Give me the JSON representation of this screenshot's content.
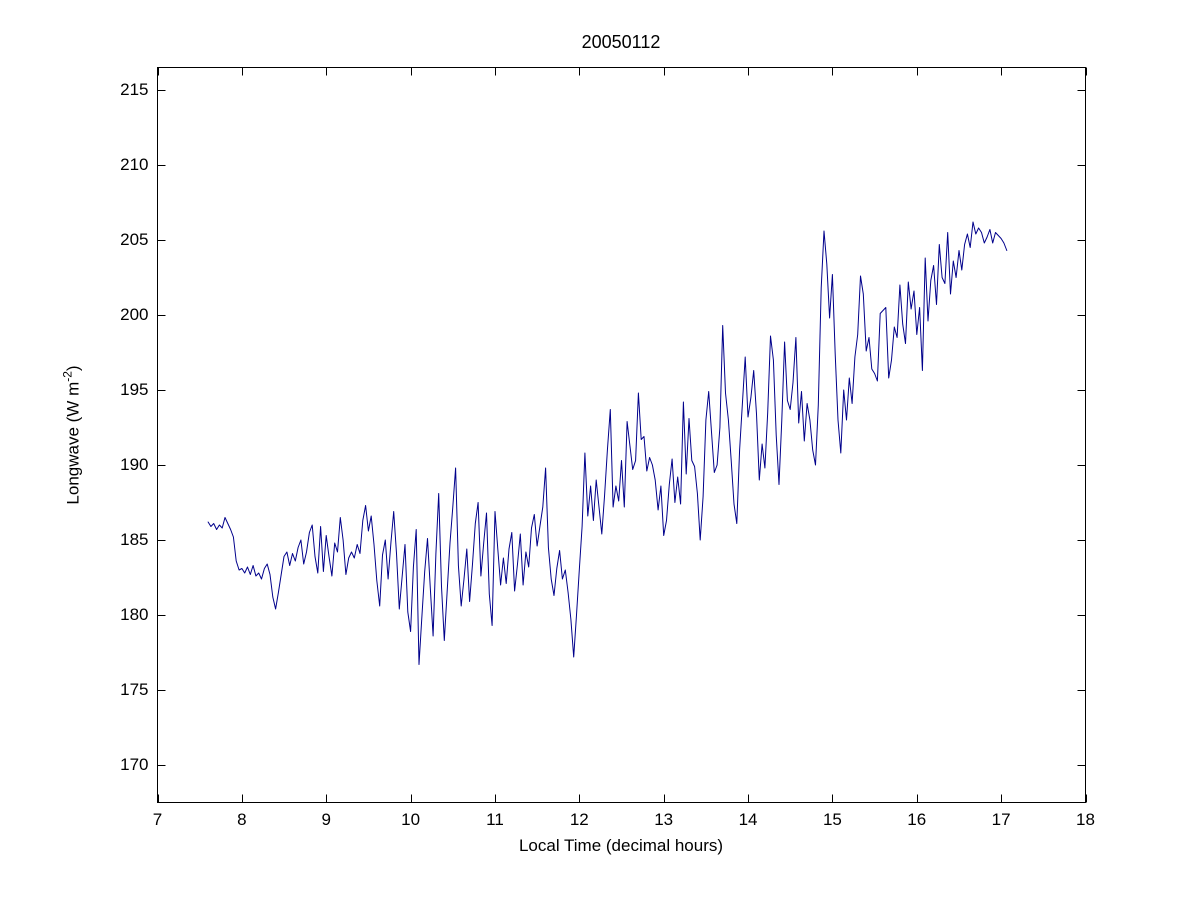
{
  "figure": {
    "title": "20050112",
    "xlabel": "Local Time (decimal hours)",
    "ylabel_main": "Longwave (W m",
    "ylabel_sup": "-2",
    "ylabel_close": ")",
    "line_color": "#00008B",
    "axis_color": "#000000",
    "background": "#FFFFFF"
  },
  "chart_data": {
    "type": "line",
    "title": "20050112",
    "xlabel": "Local Time (decimal hours)",
    "ylabel": "Longwave (W m^-2)",
    "xlim": [
      7,
      18
    ],
    "ylim": [
      167.5,
      216.5
    ],
    "xticks": [
      7,
      8,
      9,
      10,
      11,
      12,
      13,
      14,
      15,
      16,
      17,
      18
    ],
    "yticks": [
      170,
      175,
      180,
      185,
      190,
      195,
      200,
      205,
      210,
      215
    ],
    "grid": false,
    "legend": "none",
    "series_name": "longwave-irradiance",
    "x_start": 7.6,
    "x_step": 0.0333333,
    "y": [
      186.2,
      185.9,
      186.1,
      185.7,
      186.0,
      185.8,
      186.5,
      186.1,
      185.7,
      185.2,
      183.6,
      183.0,
      183.1,
      182.8,
      183.2,
      182.7,
      183.3,
      182.6,
      182.8,
      182.4,
      183.1,
      183.4,
      182.7,
      181.2,
      180.4,
      181.5,
      182.7,
      183.9,
      184.2,
      183.3,
      184.1,
      183.6,
      184.5,
      185.0,
      183.4,
      184.2,
      185.5,
      186.0,
      183.9,
      182.8,
      185.9,
      182.9,
      185.3,
      183.9,
      182.6,
      184.8,
      184.2,
      186.5,
      185.0,
      182.7,
      183.8,
      184.2,
      183.8,
      184.7,
      184.1,
      186.3,
      187.3,
      185.6,
      186.6,
      184.7,
      182.3,
      180.6,
      184.0,
      185.0,
      182.4,
      184.8,
      186.9,
      184.1,
      180.4,
      182.6,
      184.7,
      180.2,
      178.9,
      183.2,
      185.7,
      176.7,
      179.8,
      182.9,
      185.1,
      181.8,
      178.6,
      184.1,
      188.1,
      181.9,
      178.3,
      181.5,
      184.8,
      187.2,
      189.8,
      183.3,
      180.6,
      182.4,
      184.4,
      180.9,
      183.4,
      186.1,
      187.5,
      182.6,
      184.8,
      186.8,
      181.4,
      179.3,
      186.9,
      184.4,
      182.0,
      183.8,
      182.1,
      184.4,
      185.5,
      181.6,
      183.4,
      185.4,
      182.0,
      184.2,
      183.2,
      185.8,
      186.7,
      184.6,
      185.9,
      187.2,
      189.8,
      184.5,
      182.4,
      181.3,
      183.1,
      184.3,
      182.4,
      183.0,
      181.5,
      179.7,
      177.2,
      180.0,
      183.0,
      185.9,
      190.8,
      186.6,
      188.6,
      186.3,
      189.0,
      187.2,
      185.4,
      188.0,
      191.0,
      193.7,
      187.2,
      188.6,
      187.6,
      190.3,
      187.2,
      192.9,
      191.3,
      189.7,
      190.3,
      194.8,
      191.7,
      191.9,
      189.6,
      190.5,
      190.0,
      189.0,
      187.0,
      188.6,
      185.3,
      186.3,
      188.7,
      190.4,
      187.5,
      189.2,
      187.4,
      194.2,
      189.4,
      193.1,
      190.3,
      189.9,
      188.1,
      185.0,
      187.9,
      193.0,
      194.9,
      192.2,
      189.5,
      190.0,
      192.5,
      199.3,
      194.8,
      193.0,
      190.3,
      187.4,
      186.1,
      191.0,
      194.1,
      197.2,
      193.2,
      194.5,
      196.3,
      193.4,
      189.0,
      191.4,
      189.8,
      193.5,
      198.6,
      197.0,
      192.0,
      188.7,
      193.0,
      198.2,
      194.3,
      193.7,
      195.5,
      198.5,
      192.8,
      194.9,
      191.6,
      194.1,
      193.0,
      191.0,
      190.0,
      194.0,
      201.8,
      205.6,
      203.4,
      199.8,
      202.7,
      197.4,
      193.0,
      190.8,
      195.0,
      193.0,
      195.8,
      194.1,
      197.2,
      198.7,
      202.6,
      201.4,
      197.6,
      198.5,
      196.4,
      196.1,
      195.6,
      200.1,
      200.3,
      200.5,
      195.8,
      197.0,
      199.2,
      198.5,
      202.0,
      199.4,
      198.1,
      202.2,
      200.4,
      201.6,
      198.7,
      200.5,
      196.3,
      203.8,
      199.6,
      202.3,
      203.3,
      200.7,
      204.7,
      202.5,
      202.1,
      205.5,
      201.4,
      203.6,
      202.5,
      204.3,
      203.0,
      204.7,
      205.4,
      204.5,
      206.2,
      205.4,
      205.8,
      205.5,
      204.8,
      205.2,
      205.7,
      204.8,
      205.5,
      205.3,
      205.1,
      204.8,
      204.3
    ]
  }
}
